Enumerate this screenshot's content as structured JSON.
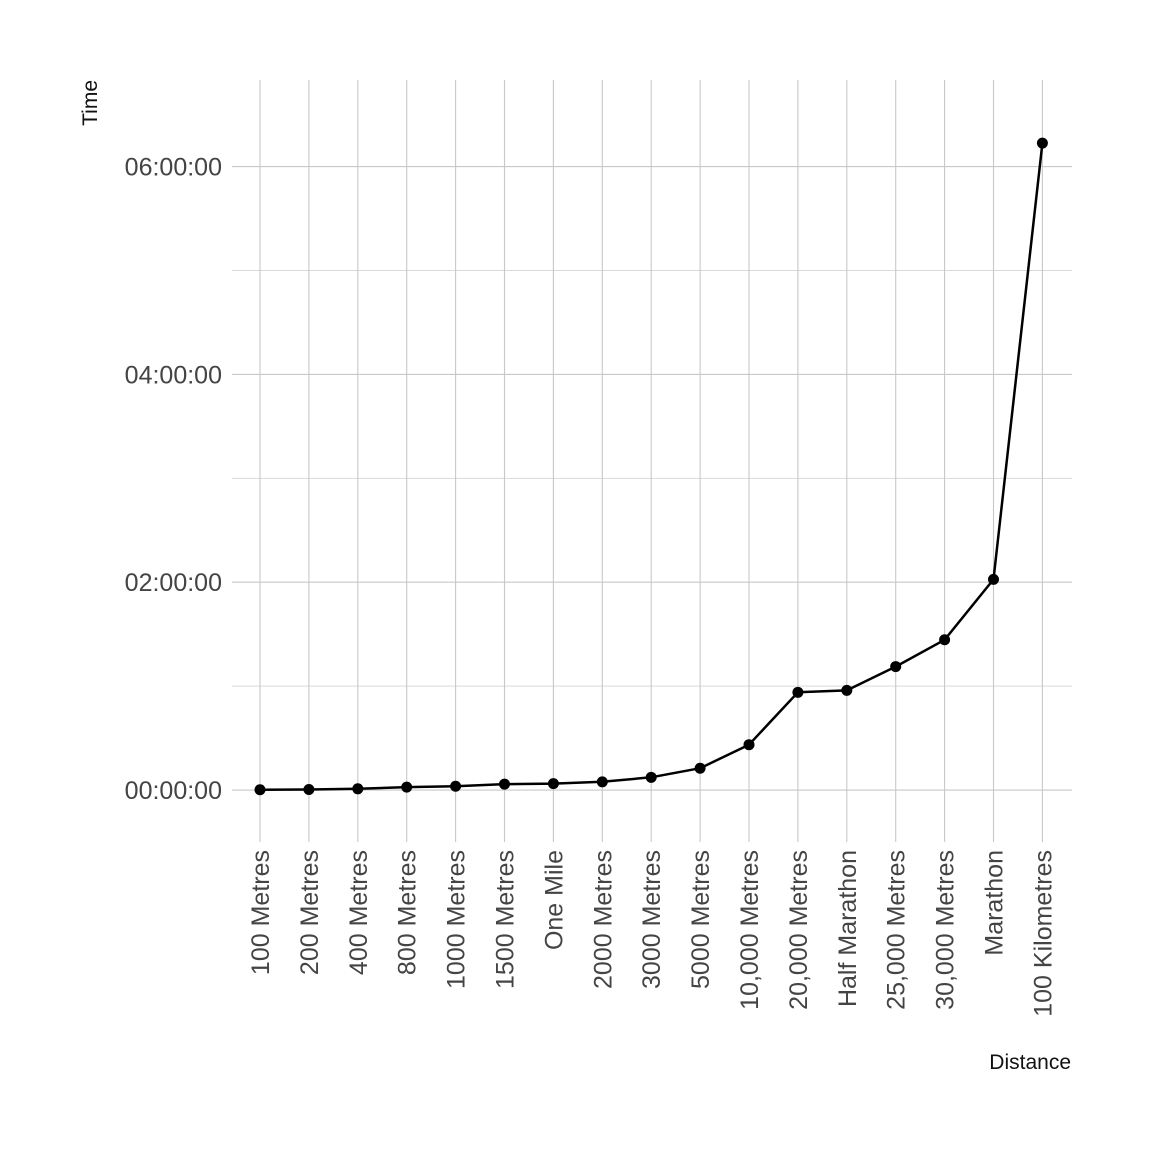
{
  "chart_data": {
    "type": "line",
    "xlabel": "Distance",
    "ylabel": "Time",
    "categories": [
      "100 Metres",
      "200 Metres",
      "400 Metres",
      "800 Metres",
      "1000 Metres",
      "1500 Metres",
      "One Mile",
      "2000 Metres",
      "3000 Metres",
      "5000 Metres",
      "10,000 Metres",
      "20,000 Metres",
      "Half Marathon",
      "25,000 Metres",
      "30,000 Metres",
      "Marathon",
      "100 Kilometres"
    ],
    "values": [
      "00:00:10",
      "00:00:19",
      "00:00:43",
      "00:01:41",
      "00:02:12",
      "00:03:26",
      "00:03:43",
      "00:04:44",
      "00:07:21",
      "00:12:36",
      "00:26:11",
      "00:56:26",
      "00:57:32",
      "01:11:18",
      "01:26:47",
      "02:01:39",
      "06:13:33"
    ],
    "y_ticks": [
      "00:00:00",
      "02:00:00",
      "04:00:00",
      "06:00:00"
    ],
    "ylim": [
      "-00:30:00",
      "06:50:00"
    ],
    "grid": true,
    "colors": {
      "line": "#000000",
      "point": "#000000",
      "grid": "#c8c8c8"
    }
  }
}
